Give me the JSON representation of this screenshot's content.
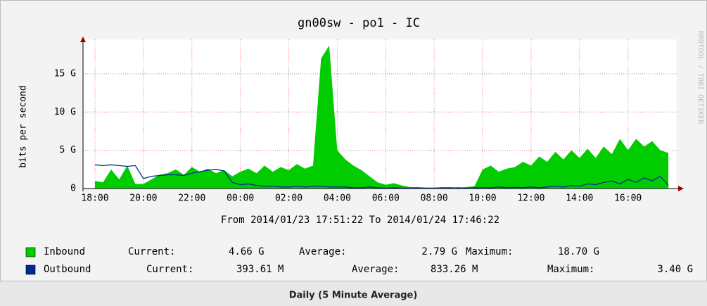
{
  "chart_data": {
    "type": "area",
    "title": "gn00sw - po1 - IC",
    "y_label": "bits per second",
    "watermark": "RRDTOOL / TOBI OETIKER",
    "subtitle": "From 2014/01/23 17:51:22 To 2014/01/24 17:46:22",
    "caption": "Daily (5 Minute Average)",
    "categories": [
      "18:00",
      null,
      null,
      null,
      null,
      null,
      "20:00",
      null,
      null,
      null,
      null,
      null,
      "22:00",
      null,
      null,
      null,
      null,
      null,
      "00:00",
      null,
      null,
      null,
      null,
      null,
      "02:00",
      null,
      null,
      null,
      null,
      null,
      "04:00",
      null,
      null,
      null,
      null,
      null,
      "06:00",
      null,
      null,
      null,
      null,
      null,
      "08:00",
      null,
      null,
      null,
      null,
      null,
      "10:00",
      null,
      null,
      null,
      null,
      null,
      "12:00",
      null,
      null,
      null,
      null,
      null,
      "14:00",
      null,
      null,
      null,
      null,
      null,
      "16:00",
      null,
      null,
      null,
      null,
      null
    ],
    "ylim": [
      0,
      19.5
    ],
    "yticks": [
      0,
      {
        "value": 5,
        "label": "5 G"
      },
      {
        "value": 10,
        "label": "10 G"
      },
      {
        "value": 15,
        "label": "15 G"
      }
    ],
    "grid": true,
    "stat_labels": [
      "Current:",
      "Average:",
      "Maximum:"
    ],
    "series": [
      {
        "name": "Inbound",
        "color": "#00cc00",
        "draw": "area",
        "stats": [
          "4.66 G",
          "2.79 G",
          "18.70 G"
        ],
        "values": [
          1.0,
          0.8,
          2.5,
          1.2,
          3.0,
          0.6,
          0.6,
          1.2,
          1.8,
          2.0,
          2.5,
          1.8,
          2.8,
          2.2,
          2.6,
          2.0,
          2.4,
          1.6,
          2.2,
          2.6,
          2.0,
          3.0,
          2.2,
          2.8,
          2.4,
          3.2,
          2.6,
          3.0,
          17.0,
          18.7,
          5.0,
          3.8,
          3.0,
          2.4,
          1.6,
          0.8,
          0.5,
          0.7,
          0.4,
          0.2,
          0.15,
          0.1,
          0.1,
          0.15,
          0.2,
          0.1,
          0.2,
          0.3,
          2.5,
          3.0,
          2.2,
          2.6,
          2.8,
          3.5,
          3.0,
          4.2,
          3.5,
          4.8,
          3.8,
          5.0,
          4.0,
          5.2,
          4.0,
          5.5,
          4.5,
          6.5,
          5.0,
          6.5,
          5.5,
          6.2,
          5.0,
          4.66
        ]
      },
      {
        "name": "Outbound",
        "color": "#002a97",
        "draw": "line",
        "stats": [
          "393.61 M",
          "833.26 M",
          "3.40 G"
        ],
        "values": [
          3.1,
          3.0,
          3.1,
          3.0,
          2.9,
          3.0,
          1.3,
          1.6,
          1.7,
          1.8,
          1.8,
          1.7,
          2.0,
          2.2,
          2.4,
          2.5,
          2.3,
          0.8,
          0.5,
          0.6,
          0.4,
          0.3,
          0.3,
          0.2,
          0.2,
          0.3,
          0.2,
          0.3,
          0.3,
          0.2,
          0.2,
          0.2,
          0.1,
          0.1,
          0.2,
          0.1,
          0.05,
          0.1,
          0.05,
          0.05,
          0.1,
          0.05,
          0.05,
          0.1,
          0.05,
          0.1,
          0.05,
          0.1,
          0.1,
          0.1,
          0.2,
          0.1,
          0.15,
          0.1,
          0.2,
          0.1,
          0.2,
          0.3,
          0.2,
          0.4,
          0.3,
          0.6,
          0.5,
          0.8,
          1.0,
          0.6,
          1.2,
          0.8,
          1.4,
          1.0,
          1.6,
          0.39
        ]
      }
    ]
  }
}
